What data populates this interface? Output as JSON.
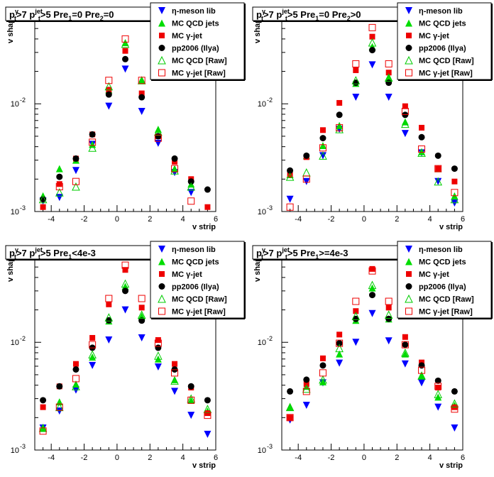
{
  "chart_data": [
    {
      "type": "scatter",
      "title": {
        "main": "p",
        "sub1": "t",
        "sup1": "γ",
        "mid1": ">7  p",
        "sub2": "t",
        "sup2": "jet",
        "mid2": ">5  Pre",
        "sub3": "1",
        "mid3": "=0  Pre",
        "sub4": "2",
        "tail": "=0"
      },
      "xlabel": "v strip",
      "ylabel": "v shape",
      "xlim": [
        -5,
        6
      ],
      "ylim": [
        0.001,
        0.07
      ],
      "log_y": true,
      "x_ticks": [
        "-4",
        "-2",
        "0",
        "2",
        "4",
        "6"
      ],
      "y_ticks": [
        {
          "base": "10",
          "exp": "-3",
          "value": 0.001
        },
        {
          "base": "10",
          "exp": "-2",
          "value": 0.01
        }
      ],
      "legend_position": "top-right",
      "x": [
        -4.5,
        -3.5,
        -2.5,
        -1.5,
        -0.5,
        0.5,
        1.5,
        2.5,
        3.5,
        4.5,
        5.5
      ],
      "series": [
        {
          "name": "η-meson lib",
          "values": [
            0.00125,
            0.00135,
            0.0024,
            0.0042,
            0.0095,
            0.021,
            0.0085,
            0.0043,
            0.0023,
            0.0015,
            null
          ]
        },
        {
          "name": "MC QCD jets",
          "values": [
            0.0014,
            0.0025,
            0.003,
            0.0042,
            0.0135,
            0.037,
            0.0165,
            0.0058,
            0.0025,
            0.0018,
            null
          ]
        },
        {
          "name": "MC γ-jet",
          "values": [
            0.0011,
            0.0018,
            0.0031,
            0.0052,
            0.0135,
            0.031,
            0.0125,
            0.005,
            0.0029,
            0.002,
            0.0011
          ]
        },
        {
          "name": "pp2006 (Ilya)",
          "values": [
            0.0013,
            0.0021,
            0.0031,
            0.0052,
            0.0122,
            0.026,
            0.0115,
            0.005,
            0.0031,
            0.0019,
            0.0016
          ]
        },
        {
          "name": "MC QCD [Raw]",
          "values": [
            0.0013,
            0.0015,
            0.0017,
            0.0039,
            0.0145,
            0.036,
            0.0165,
            0.0055,
            0.0024,
            0.0017,
            null
          ]
        },
        {
          "name": "MC γ-jet [Raw]",
          "values": [
            null,
            0.0017,
            0.0019,
            0.0044,
            0.0165,
            0.04,
            0.0165,
            0.0048,
            0.0025,
            0.00125,
            null
          ]
        }
      ]
    },
    {
      "type": "scatter",
      "title": {
        "main": "p",
        "sub1": "t",
        "sup1": "γ",
        "mid1": ">7  p",
        "sub2": "t",
        "sup2": "jet",
        "mid2": ">5  Pre",
        "sub3": "1",
        "mid3": "=0  Pre",
        "sub4": "2",
        "tail": ">0"
      },
      "xlabel": "v strip",
      "ylabel": "v shape",
      "xlim": [
        -5,
        6
      ],
      "ylim": [
        0.001,
        0.07
      ],
      "log_y": true,
      "x_ticks": [
        "-4",
        "-2",
        "0",
        "2",
        "4",
        "6"
      ],
      "y_ticks": [
        {
          "base": "10",
          "exp": "-3",
          "value": 0.001
        },
        {
          "base": "10",
          "exp": "-2",
          "value": 0.01
        }
      ],
      "legend_position": "top-right",
      "x": [
        -4.5,
        -3.5,
        -2.5,
        -1.5,
        -0.5,
        0.5,
        1.5,
        2.5,
        3.5,
        4.5,
        5.5
      ],
      "series": [
        {
          "name": "η-meson lib",
          "values": [
            0.0013,
            0.0019,
            0.0033,
            0.0058,
            0.0115,
            0.023,
            0.0115,
            0.0053,
            0.0035,
            0.0019,
            0.0012
          ]
        },
        {
          "name": "MC QCD jets",
          "values": [
            0.0022,
            0.0033,
            0.0041,
            0.0063,
            0.0155,
            0.034,
            0.0175,
            0.0068,
            0.0036,
            0.0025,
            0.0014
          ]
        },
        {
          "name": "MC γ-jet",
          "values": [
            0.0022,
            0.0032,
            0.0057,
            0.0102,
            0.0205,
            0.042,
            0.0195,
            0.0095,
            0.006,
            0.0025,
            0.0019
          ]
        },
        {
          "name": "pp2006 (Ilya)",
          "values": [
            0.0024,
            0.0033,
            0.0048,
            0.0079,
            0.0157,
            0.0315,
            0.0157,
            0.0079,
            0.0049,
            0.0033,
            0.0025
          ]
        },
        {
          "name": "MC QCD [Raw]",
          "values": [
            0.0021,
            0.0023,
            0.0033,
            0.0058,
            0.0165,
            0.037,
            0.0175,
            0.0065,
            0.0035,
            0.0019,
            0.0013
          ]
        },
        {
          "name": "MC γ-jet [Raw]",
          "values": [
            0.0011,
            0.002,
            0.0039,
            0.006,
            0.0235,
            0.051,
            0.0235,
            0.0085,
            0.0038,
            0.0025,
            0.0015
          ]
        }
      ]
    },
    {
      "type": "scatter",
      "title": {
        "main": "p",
        "sub1": "t",
        "sup1": "γ",
        "mid1": ">7  p",
        "sub2": "t",
        "sup2": "jet",
        "mid2": ">5  Pre",
        "sub3": "1",
        "mid3": "<4e-3",
        "sub4": "",
        "tail": ""
      },
      "xlabel": "v strip",
      "ylabel": "v shape",
      "xlim": [
        -5,
        6
      ],
      "ylim": [
        0.001,
        0.07
      ],
      "log_y": true,
      "x_ticks": [
        "-4",
        "-2",
        "0",
        "2",
        "4",
        "6"
      ],
      "y_ticks": [
        {
          "base": "10",
          "exp": "-3",
          "value": 0.001
        },
        {
          "base": "10",
          "exp": "-2",
          "value": 0.01
        }
      ],
      "legend_position": "top-right",
      "x": [
        -4.5,
        -3.5,
        -2.5,
        -1.5,
        -0.5,
        0.5,
        1.5,
        2.5,
        3.5,
        4.5,
        5.5
      ],
      "series": [
        {
          "name": "η-meson lib",
          "values": [
            0.0016,
            0.0023,
            0.0036,
            0.0061,
            0.0105,
            0.02,
            0.011,
            0.0059,
            0.0035,
            0.0021,
            0.0014
          ]
        },
        {
          "name": "MC QCD jets",
          "values": [
            0.0016,
            0.0028,
            0.0041,
            0.0073,
            0.0158,
            0.033,
            0.0175,
            0.007,
            0.0045,
            0.0029,
            0.0023
          ]
        },
        {
          "name": "MC γ-jet",
          "values": [
            0.0025,
            0.0039,
            0.0063,
            0.011,
            0.0225,
            0.047,
            0.021,
            0.0105,
            0.0063,
            0.0038,
            0.0022
          ]
        },
        {
          "name": "pp2006 (Ilya)",
          "values": [
            0.0029,
            0.0039,
            0.0056,
            0.0089,
            0.016,
            0.03,
            0.0159,
            0.0089,
            0.0056,
            0.0039,
            0.0029
          ]
        },
        {
          "name": "MC QCD [Raw]",
          "values": [
            0.0016,
            0.0025,
            0.0039,
            0.0077,
            0.017,
            0.035,
            0.018,
            0.0075,
            0.0044,
            0.003,
            0.0024
          ]
        },
        {
          "name": "MC γ-jet [Raw]",
          "values": [
            0.0015,
            0.0025,
            0.0046,
            0.0095,
            0.0255,
            0.052,
            0.0255,
            0.0098,
            0.0052,
            0.0029,
            0.0021
          ]
        }
      ]
    },
    {
      "type": "scatter",
      "title": {
        "main": "p",
        "sub1": "t",
        "sup1": "γ",
        "mid1": ">7  p",
        "sub2": "t",
        "sup2": "jet",
        "mid2": ">5  Pre",
        "sub3": "1",
        "mid3": ">=4e-3",
        "sub4": "",
        "tail": ""
      },
      "xlabel": "v strip",
      "ylabel": "v shape",
      "xlim": [
        -5,
        6
      ],
      "ylim": [
        0.001,
        0.07
      ],
      "log_y": true,
      "x_ticks": [
        "-4",
        "-2",
        "0",
        "2",
        "4",
        "6"
      ],
      "y_ticks": [
        {
          "base": "10",
          "exp": "-3",
          "value": 0.001
        },
        {
          "base": "10",
          "exp": "-2",
          "value": 0.01
        }
      ],
      "legend_position": "top-right",
      "x": [
        -4.5,
        -3.5,
        -2.5,
        -1.5,
        -0.5,
        0.5,
        1.5,
        2.5,
        3.5,
        4.5,
        5.5
      ],
      "series": [
        {
          "name": "η-meson lib",
          "values": [
            0.0019,
            0.0026,
            0.0042,
            0.0064,
            0.01,
            0.0185,
            0.0103,
            0.0063,
            0.0042,
            0.0025,
            0.0016
          ]
        },
        {
          "name": "MC QCD jets",
          "values": [
            0.0025,
            0.0039,
            0.0043,
            0.0078,
            0.016,
            0.032,
            0.0165,
            0.0078,
            0.0049,
            0.0031,
            0.0026
          ]
        },
        {
          "name": "MC γ-jet",
          "values": [
            0.002,
            0.0041,
            0.0071,
            0.0118,
            0.0195,
            0.048,
            0.021,
            0.0112,
            0.0065,
            0.0038,
            0.0025
          ]
        },
        {
          "name": "pp2006 (Ilya)",
          "values": [
            0.0035,
            0.0045,
            0.0061,
            0.0098,
            0.0165,
            0.0275,
            0.0165,
            0.0095,
            0.0061,
            0.0044,
            0.0035
          ]
        },
        {
          "name": "MC QCD [Raw]",
          "values": [
            0.0025,
            0.0037,
            0.0045,
            0.0088,
            0.0175,
            0.034,
            0.018,
            0.008,
            0.0049,
            0.0033,
            0.0027
          ]
        },
        {
          "name": "MC γ-jet [Raw]",
          "values": [
            0.002,
            0.0035,
            0.0052,
            0.0098,
            0.024,
            0.046,
            0.024,
            0.0095,
            0.0055,
            0.0039,
            0.0024
          ]
        }
      ]
    }
  ],
  "style": {
    "series_colors": [
      "#0000ff",
      "#00dd00",
      "#ee0000",
      "#000000",
      "#00cc00",
      "#ee0000"
    ],
    "series_markers": [
      "triangle-down-filled",
      "triangle-up-filled",
      "square-filled",
      "circle-filled",
      "triangle-up-open",
      "square-open"
    ]
  }
}
